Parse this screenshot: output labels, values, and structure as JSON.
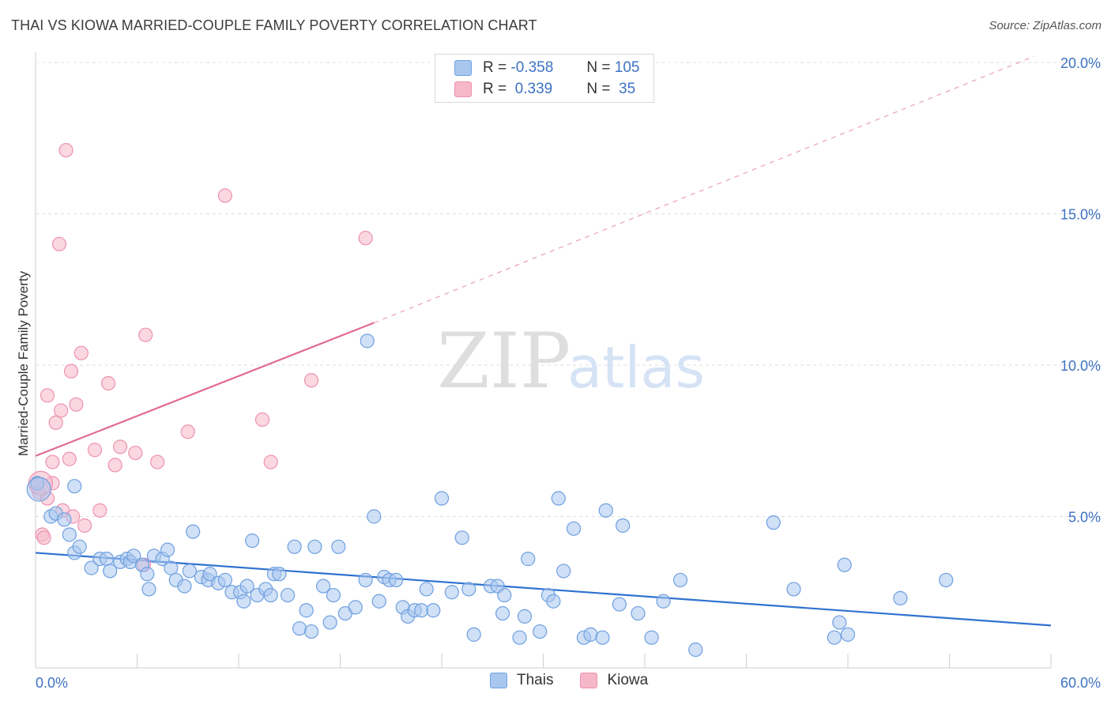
{
  "title": "THAI VS KIOWA MARRIED-COUPLE FAMILY POVERTY CORRELATION CHART",
  "source": "Source: ZipAtlas.com",
  "watermark": {
    "zip": "ZIP",
    "atlas": "atlas"
  },
  "legend": {
    "rows": [
      {
        "r_label": "R =",
        "r_value": "-0.358",
        "n_label": "N =",
        "n_value": "105",
        "color": "#a9c7ee"
      },
      {
        "r_label": "R =",
        "r_value": " 0.339",
        "n_label": "N =",
        "n_value": " 35",
        "color": "#f6b7c9"
      }
    ]
  },
  "bottom_legend": [
    {
      "label": "Thais",
      "color": "#a9c7ee"
    },
    {
      "label": "Kiowa",
      "color": "#f6b7c9"
    }
  ],
  "chart_data": {
    "type": "scatter",
    "title": "THAI VS KIOWA MARRIED-COUPLE FAMILY POVERTY CORRELATION CHART",
    "xlabel": "",
    "ylabel": "Married-Couple Family Poverty",
    "xlim": [
      0,
      60
    ],
    "ylim": [
      0,
      20
    ],
    "x_tick_labels": [
      "0.0%",
      "60.0%"
    ],
    "y_tick_labels": [
      "5.0%",
      "10.0%",
      "15.0%",
      "20.0%"
    ],
    "y_ticks": [
      5,
      10,
      15,
      20
    ],
    "grid": "horizontal dashed",
    "legend_position": "top-center",
    "series": [
      {
        "name": "Thais",
        "color": "#6ea0e0",
        "fill": "#a9c7ee",
        "trend": {
          "x0": 0,
          "y0": 3.8,
          "x1": 60,
          "y1": 1.4,
          "style": "solid"
        },
        "points": [
          [
            0.1,
            6.1
          ],
          [
            0.9,
            5.0
          ],
          [
            1.2,
            5.1
          ],
          [
            1.7,
            4.9
          ],
          [
            2.0,
            4.4
          ],
          [
            2.3,
            6.0
          ],
          [
            2.3,
            3.8
          ],
          [
            2.6,
            4.0
          ],
          [
            3.3,
            3.3
          ],
          [
            3.8,
            3.6
          ],
          [
            4.2,
            3.6
          ],
          [
            4.4,
            3.2
          ],
          [
            5.0,
            3.5
          ],
          [
            5.4,
            3.6
          ],
          [
            5.6,
            3.5
          ],
          [
            5.8,
            3.7
          ],
          [
            6.3,
            3.4
          ],
          [
            6.6,
            3.1
          ],
          [
            6.7,
            2.6
          ],
          [
            7.0,
            3.7
          ],
          [
            7.5,
            3.6
          ],
          [
            7.8,
            3.9
          ],
          [
            8.0,
            3.3
          ],
          [
            8.3,
            2.9
          ],
          [
            8.8,
            2.7
          ],
          [
            9.1,
            3.2
          ],
          [
            9.3,
            4.5
          ],
          [
            9.8,
            3.0
          ],
          [
            10.2,
            2.9
          ],
          [
            10.3,
            3.1
          ],
          [
            10.8,
            2.8
          ],
          [
            11.2,
            2.9
          ],
          [
            11.6,
            2.5
          ],
          [
            12.1,
            2.5
          ],
          [
            12.3,
            2.2
          ],
          [
            12.5,
            2.7
          ],
          [
            12.8,
            4.2
          ],
          [
            13.1,
            2.4
          ],
          [
            13.6,
            2.6
          ],
          [
            13.9,
            2.4
          ],
          [
            14.1,
            3.1
          ],
          [
            14.4,
            3.1
          ],
          [
            14.9,
            2.4
          ],
          [
            15.3,
            4.0
          ],
          [
            15.6,
            1.3
          ],
          [
            16.0,
            1.9
          ],
          [
            16.3,
            1.2
          ],
          [
            16.5,
            4.0
          ],
          [
            17.0,
            2.7
          ],
          [
            17.4,
            1.5
          ],
          [
            17.6,
            2.4
          ],
          [
            17.9,
            4.0
          ],
          [
            18.3,
            1.8
          ],
          [
            18.9,
            2.0
          ],
          [
            19.5,
            2.9
          ],
          [
            19.6,
            10.8
          ],
          [
            20.0,
            5.0
          ],
          [
            20.3,
            2.2
          ],
          [
            20.6,
            3.0
          ],
          [
            20.9,
            2.9
          ],
          [
            21.3,
            2.9
          ],
          [
            21.7,
            2.0
          ],
          [
            22.0,
            1.7
          ],
          [
            22.4,
            1.9
          ],
          [
            22.8,
            1.9
          ],
          [
            23.1,
            2.6
          ],
          [
            23.5,
            1.9
          ],
          [
            24.0,
            5.6
          ],
          [
            24.6,
            2.5
          ],
          [
            25.2,
            4.3
          ],
          [
            25.6,
            2.6
          ],
          [
            25.9,
            1.1
          ],
          [
            26.9,
            2.7
          ],
          [
            27.3,
            2.7
          ],
          [
            27.6,
            1.8
          ],
          [
            27.7,
            2.4
          ],
          [
            28.6,
            1.0
          ],
          [
            28.9,
            1.7
          ],
          [
            29.1,
            3.6
          ],
          [
            29.8,
            1.2
          ],
          [
            30.3,
            2.4
          ],
          [
            30.6,
            2.2
          ],
          [
            30.9,
            5.6
          ],
          [
            31.2,
            3.2
          ],
          [
            31.8,
            4.6
          ],
          [
            32.4,
            1.0
          ],
          [
            32.8,
            1.1
          ],
          [
            33.5,
            1.0
          ],
          [
            33.7,
            5.2
          ],
          [
            34.5,
            2.1
          ],
          [
            34.7,
            4.7
          ],
          [
            35.6,
            1.8
          ],
          [
            36.4,
            1.0
          ],
          [
            37.1,
            2.2
          ],
          [
            38.1,
            2.9
          ],
          [
            39.0,
            0.6
          ],
          [
            43.6,
            4.8
          ],
          [
            44.8,
            2.6
          ],
          [
            47.2,
            1.0
          ],
          [
            47.5,
            1.5
          ],
          [
            47.8,
            3.4
          ],
          [
            48.0,
            1.1
          ],
          [
            51.1,
            2.3
          ],
          [
            53.8,
            2.9
          ],
          [
            0.2,
            5.9
          ]
        ]
      },
      {
        "name": "Kiowa",
        "color": "#ee92ae",
        "fill": "#f6b7c9",
        "trend": {
          "x0": 0,
          "y0": 7.0,
          "x1": 20,
          "y1": 11.4,
          "style": "solid",
          "extended_to": [
            59,
            20.2
          ],
          "extended_style": "dashed"
        },
        "points": [
          [
            0.1,
            6.0
          ],
          [
            0.2,
            5.8
          ],
          [
            0.4,
            4.4
          ],
          [
            0.5,
            4.3
          ],
          [
            0.7,
            5.6
          ],
          [
            0.7,
            9.0
          ],
          [
            1.0,
            6.1
          ],
          [
            1.0,
            6.8
          ],
          [
            1.2,
            8.1
          ],
          [
            1.4,
            14.0
          ],
          [
            1.5,
            8.5
          ],
          [
            1.6,
            5.2
          ],
          [
            1.8,
            17.1
          ],
          [
            2.0,
            6.9
          ],
          [
            2.1,
            9.8
          ],
          [
            2.2,
            5.0
          ],
          [
            2.4,
            8.7
          ],
          [
            2.7,
            10.4
          ],
          [
            2.9,
            4.7
          ],
          [
            3.5,
            7.2
          ],
          [
            3.8,
            5.2
          ],
          [
            4.3,
            9.4
          ],
          [
            4.7,
            6.7
          ],
          [
            5.0,
            7.3
          ],
          [
            5.9,
            7.1
          ],
          [
            6.4,
            3.4
          ],
          [
            6.5,
            11.0
          ],
          [
            7.2,
            6.8
          ],
          [
            9.0,
            7.8
          ],
          [
            11.2,
            15.6
          ],
          [
            13.4,
            8.2
          ],
          [
            13.9,
            6.8
          ],
          [
            16.3,
            9.5
          ],
          [
            19.5,
            14.2
          ],
          [
            0.3,
            6.1
          ]
        ]
      }
    ]
  }
}
